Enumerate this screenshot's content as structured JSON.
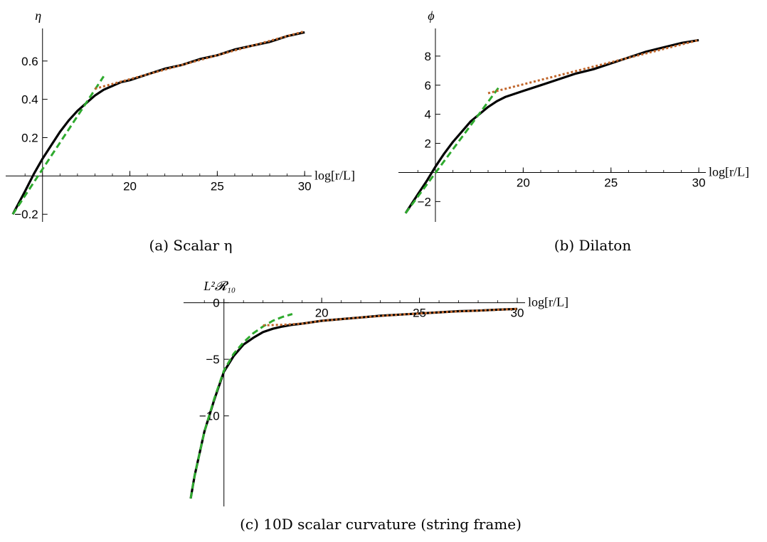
{
  "chart_data": [
    {
      "id": "a",
      "type": "line",
      "caption": "(a) Scalar η",
      "xlabel": "log[r/L]",
      "ylabel": "η",
      "xlim": [
        13.3,
        30.4
      ],
      "ylim": [
        -0.24,
        0.77
      ],
      "xticks": [
        {
          "v": 20,
          "label": "20"
        },
        {
          "v": 25,
          "label": "25"
        },
        {
          "v": 30,
          "label": "30"
        }
      ],
      "yticks": [
        {
          "v": -0.2,
          "label": "−0.2"
        },
        {
          "v": 0.2,
          "label": "0.2"
        },
        {
          "v": 0.4,
          "label": "0.4"
        },
        {
          "v": 0.6,
          "label": "0.6"
        }
      ],
      "grid": false,
      "series": [
        {
          "style": "solid",
          "color": "#000000",
          "x": [
            13.3,
            14.0,
            14.5,
            15.0,
            15.5,
            16.0,
            16.5,
            17.0,
            17.5,
            18.0,
            18.5,
            19.0,
            19.5,
            20.0,
            21.0,
            22.0,
            23.0,
            24.0,
            25.0,
            26.0,
            27.0,
            28.0,
            29.0,
            30.0
          ],
          "y": [
            -0.2,
            -0.08,
            0.01,
            0.09,
            0.16,
            0.23,
            0.29,
            0.34,
            0.38,
            0.42,
            0.45,
            0.47,
            0.49,
            0.5,
            0.53,
            0.56,
            0.58,
            0.61,
            0.63,
            0.66,
            0.68,
            0.7,
            0.73,
            0.75
          ]
        },
        {
          "style": "dashed",
          "color": "#2eaa2e",
          "x": [
            13.3,
            18.5
          ],
          "y": [
            -0.2,
            0.52
          ]
        },
        {
          "style": "dotted",
          "color": "#c0652a",
          "x": [
            18.0,
            30.0
          ],
          "y": [
            0.455,
            0.755
          ]
        }
      ]
    },
    {
      "id": "b",
      "type": "line",
      "caption": "(b) Dilaton",
      "xlabel": "log[r/L]",
      "ylabel": "ϕ",
      "xlim": [
        13.3,
        30.4
      ],
      "ylim": [
        -3.4,
        9.9
      ],
      "xticks": [
        {
          "v": 20,
          "label": "20"
        },
        {
          "v": 25,
          "label": "25"
        },
        {
          "v": 30,
          "label": "30"
        }
      ],
      "yticks": [
        {
          "v": -2,
          "label": "−2"
        },
        {
          "v": 2,
          "label": "2"
        },
        {
          "v": 4,
          "label": "4"
        },
        {
          "v": 6,
          "label": "6"
        },
        {
          "v": 8,
          "label": "8"
        }
      ],
      "grid": false,
      "series": [
        {
          "style": "solid",
          "color": "#000000",
          "x": [
            13.3,
            14.0,
            14.5,
            15.0,
            15.5,
            16.0,
            16.5,
            17.0,
            17.5,
            18.0,
            18.5,
            19.0,
            19.5,
            20.0,
            21.0,
            22.0,
            23.0,
            24.0,
            25.0,
            26.0,
            27.0,
            28.0,
            29.0,
            30.0
          ],
          "y": [
            -2.8,
            -1.5,
            -0.6,
            0.4,
            1.3,
            2.1,
            2.8,
            3.5,
            4.0,
            4.5,
            4.9,
            5.2,
            5.4,
            5.6,
            6.0,
            6.4,
            6.8,
            7.1,
            7.5,
            7.9,
            8.3,
            8.6,
            8.9,
            9.1
          ]
        },
        {
          "style": "dashed",
          "color": "#2eaa2e",
          "x": [
            13.3,
            18.7
          ],
          "y": [
            -2.8,
            6.0
          ]
        },
        {
          "style": "dotted",
          "color": "#c0652a",
          "x": [
            18.0,
            30.0
          ],
          "y": [
            5.45,
            9.1
          ]
        }
      ]
    },
    {
      "id": "c",
      "type": "line",
      "caption": "(c) 10D scalar curvature (string frame)",
      "xlabel": "log[r/L]",
      "ylabel": "L²𝓡₁₀",
      "xlim": [
        13.3,
        30.4
      ],
      "ylim": [
        -18.0,
        0.35
      ],
      "xticks": [
        {
          "v": 20,
          "label": "20"
        },
        {
          "v": 25,
          "label": "25"
        },
        {
          "v": 30,
          "label": "30"
        }
      ],
      "yticks": [
        {
          "v": -10,
          "label": "−10"
        },
        {
          "v": -5,
          "label": "−5"
        },
        {
          "v": 0,
          "label": "0"
        }
      ],
      "grid": false,
      "series": [
        {
          "style": "solid",
          "color": "#000000",
          "x": [
            13.3,
            13.5,
            14.0,
            14.5,
            15.0,
            15.5,
            16.0,
            16.5,
            17.0,
            17.5,
            18.0,
            18.5,
            19.0,
            20.0,
            21.0,
            22.0,
            23.0,
            24.0,
            25.0,
            26.0,
            27.0,
            28.0,
            29.0,
            30.0
          ],
          "y": [
            -17.3,
            -15.3,
            -11.4,
            -8.6,
            -6.1,
            -4.7,
            -3.7,
            -3.1,
            -2.6,
            -2.3,
            -2.1,
            -1.95,
            -1.85,
            -1.6,
            -1.45,
            -1.3,
            -1.15,
            -1.05,
            -0.95,
            -0.85,
            -0.75,
            -0.7,
            -0.62,
            -0.55
          ]
        },
        {
          "style": "dashed",
          "color": "#2eaa2e",
          "x": [
            13.3,
            13.5,
            14.0,
            14.5,
            15.0,
            15.5,
            16.0,
            16.5,
            17.0,
            17.5,
            18.0,
            18.5
          ],
          "y": [
            -17.3,
            -15.3,
            -11.4,
            -8.5,
            -6.0,
            -4.5,
            -3.5,
            -2.7,
            -2.1,
            -1.6,
            -1.25,
            -1.0
          ]
        },
        {
          "style": "dotted",
          "color": "#c0652a",
          "x": [
            17.0,
            18.0,
            19.0,
            20.0,
            22.0,
            24.0,
            26.0,
            28.0,
            30.0
          ],
          "y": [
            -2.0,
            -1.95,
            -1.85,
            -1.6,
            -1.3,
            -1.05,
            -0.85,
            -0.7,
            -0.55
          ]
        }
      ]
    }
  ]
}
